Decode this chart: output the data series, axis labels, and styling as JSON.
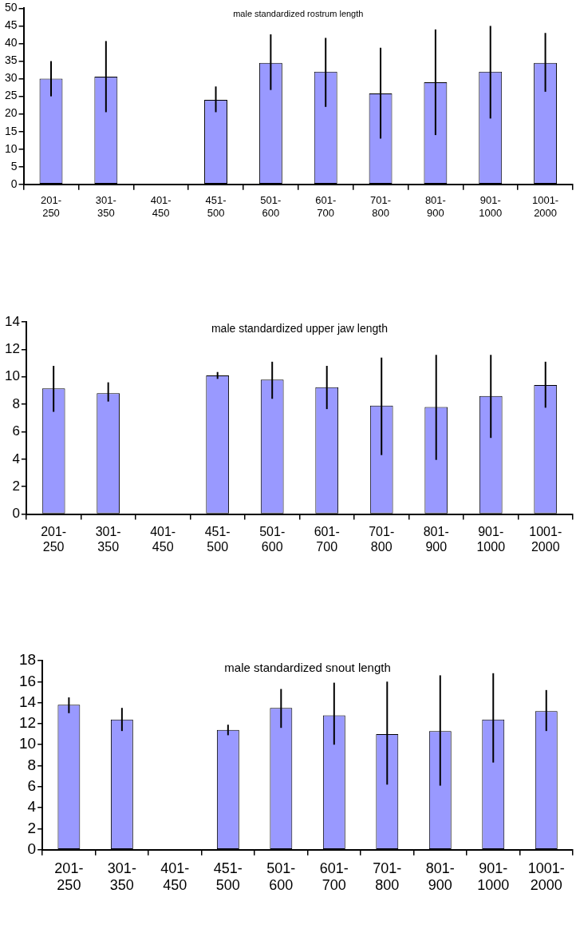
{
  "chart_data": [
    {
      "type": "bar",
      "title": "male standardized rostrum length",
      "categories": [
        "201-250",
        "301-350",
        "401-450",
        "451-500",
        "501-600",
        "601-700",
        "701-800",
        "801-900",
        "901-1000",
        "1001-2000"
      ],
      "values": [
        30,
        30.6,
        null,
        24,
        34.5,
        32,
        25.8,
        29,
        32,
        34.5
      ],
      "errors": [
        [
          25,
          35
        ],
        [
          20.5,
          40.7
        ],
        null,
        [
          20.5,
          27.8
        ],
        [
          26.8,
          42.6
        ],
        [
          22,
          41.6
        ],
        [
          13,
          38.8
        ],
        [
          14,
          44
        ],
        [
          18.7,
          45
        ],
        [
          26.3,
          43
        ]
      ],
      "color": "#9999ff",
      "ylim": [
        0,
        50
      ],
      "yticks": [
        0,
        5,
        10,
        15,
        20,
        25,
        30,
        35,
        40,
        45,
        50
      ]
    },
    {
      "type": "bar",
      "title": "male standardized upper jaw length",
      "categories": [
        "201-250",
        "301-350",
        "401-450",
        "451-500",
        "501-600",
        "601-700",
        "701-800",
        "801-900",
        "901-1000",
        "1001-2000"
      ],
      "values": [
        9.15,
        8.8,
        null,
        10.1,
        9.8,
        9.25,
        7.9,
        7.8,
        8.6,
        9.4
      ],
      "errors": [
        [
          7.45,
          10.8
        ],
        [
          8.2,
          9.6
        ],
        null,
        [
          9.85,
          10.35
        ],
        [
          8.4,
          11.1
        ],
        [
          7.65,
          10.8
        ],
        [
          4.3,
          11.4
        ],
        [
          3.95,
          11.6
        ],
        [
          5.55,
          11.6
        ],
        [
          7.75,
          11.1
        ]
      ],
      "color": "#9999ff",
      "ylim": [
        0,
        14
      ],
      "yticks": [
        0,
        2,
        4,
        6,
        8,
        10,
        12,
        14
      ]
    },
    {
      "type": "bar",
      "title": "male standardized snout length",
      "categories": [
        "201-250",
        "301-350",
        "401-450",
        "451-500",
        "501-600",
        "601-700",
        "701-800",
        "801-900",
        "901-1000",
        "1001-2000"
      ],
      "values": [
        13.8,
        12.4,
        null,
        11.4,
        13.5,
        12.8,
        11,
        11.3,
        12.4,
        13.2
      ],
      "errors": [
        [
          13,
          14.5
        ],
        [
          11.3,
          13.5
        ],
        null,
        [
          10.9,
          11.9
        ],
        [
          11.6,
          15.3
        ],
        [
          10,
          15.9
        ],
        [
          6.2,
          16
        ],
        [
          6.1,
          16.6
        ],
        [
          8.3,
          16.8
        ],
        [
          11.3,
          15.2
        ]
      ],
      "color": "#9999ff",
      "ylim": [
        0,
        18
      ],
      "yticks": [
        0,
        2,
        4,
        6,
        8,
        10,
        12,
        14,
        16,
        18
      ]
    }
  ]
}
